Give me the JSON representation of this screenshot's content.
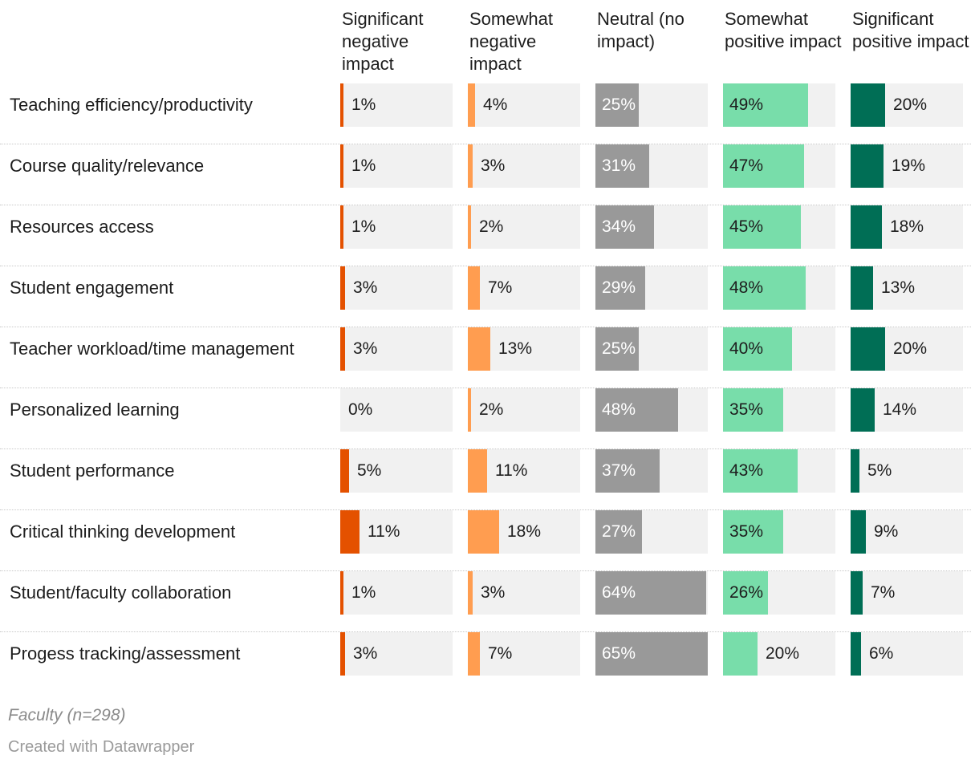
{
  "chart_data": {
    "type": "bar",
    "columns": [
      {
        "name": "Significant negative impact",
        "color": "#e45100",
        "label_inside_color": "#ffffff"
      },
      {
        "name": "Somewhat negative impact",
        "color": "#ff9d50",
        "label_inside_color": "#ffffff"
      },
      {
        "name": "Neutral (no impact)",
        "color": "#999999",
        "label_inside_color": "#ffffff"
      },
      {
        "name": "Somewhat positive impact",
        "color": "#78ddaa",
        "label_inside_color": "#1d1d1d"
      },
      {
        "name": "Significant positive impact",
        "color": "#006e55",
        "label_inside_color": "#ffffff"
      }
    ],
    "rows": [
      {
        "label": "Teaching efficiency/productivity",
        "values": [
          1,
          4,
          25,
          49,
          20
        ]
      },
      {
        "label": "Course quality/relevance",
        "values": [
          1,
          3,
          31,
          47,
          19
        ]
      },
      {
        "label": "Resources access",
        "values": [
          1,
          2,
          34,
          45,
          18
        ]
      },
      {
        "label": "Student engagement",
        "values": [
          3,
          7,
          29,
          48,
          13
        ]
      },
      {
        "label": "Teacher workload/time management",
        "values": [
          3,
          13,
          25,
          40,
          20
        ]
      },
      {
        "label": "Personalized learning",
        "values": [
          0,
          2,
          48,
          35,
          14
        ]
      },
      {
        "label": "Student performance",
        "values": [
          5,
          11,
          37,
          43,
          5
        ]
      },
      {
        "label": "Critical thinking development",
        "values": [
          11,
          18,
          27,
          35,
          9
        ]
      },
      {
        "label": "Student/faculty collaboration",
        "values": [
          1,
          3,
          64,
          26,
          7
        ]
      },
      {
        "label": "Progess tracking/assessment",
        "values": [
          3,
          7,
          65,
          20,
          6
        ]
      }
    ],
    "value_suffix": "%",
    "xlim": [
      0,
      65
    ],
    "grid": false
  },
  "footer": {
    "note": "Faculty (n=298)",
    "credit": "Created with Datawrapper"
  }
}
